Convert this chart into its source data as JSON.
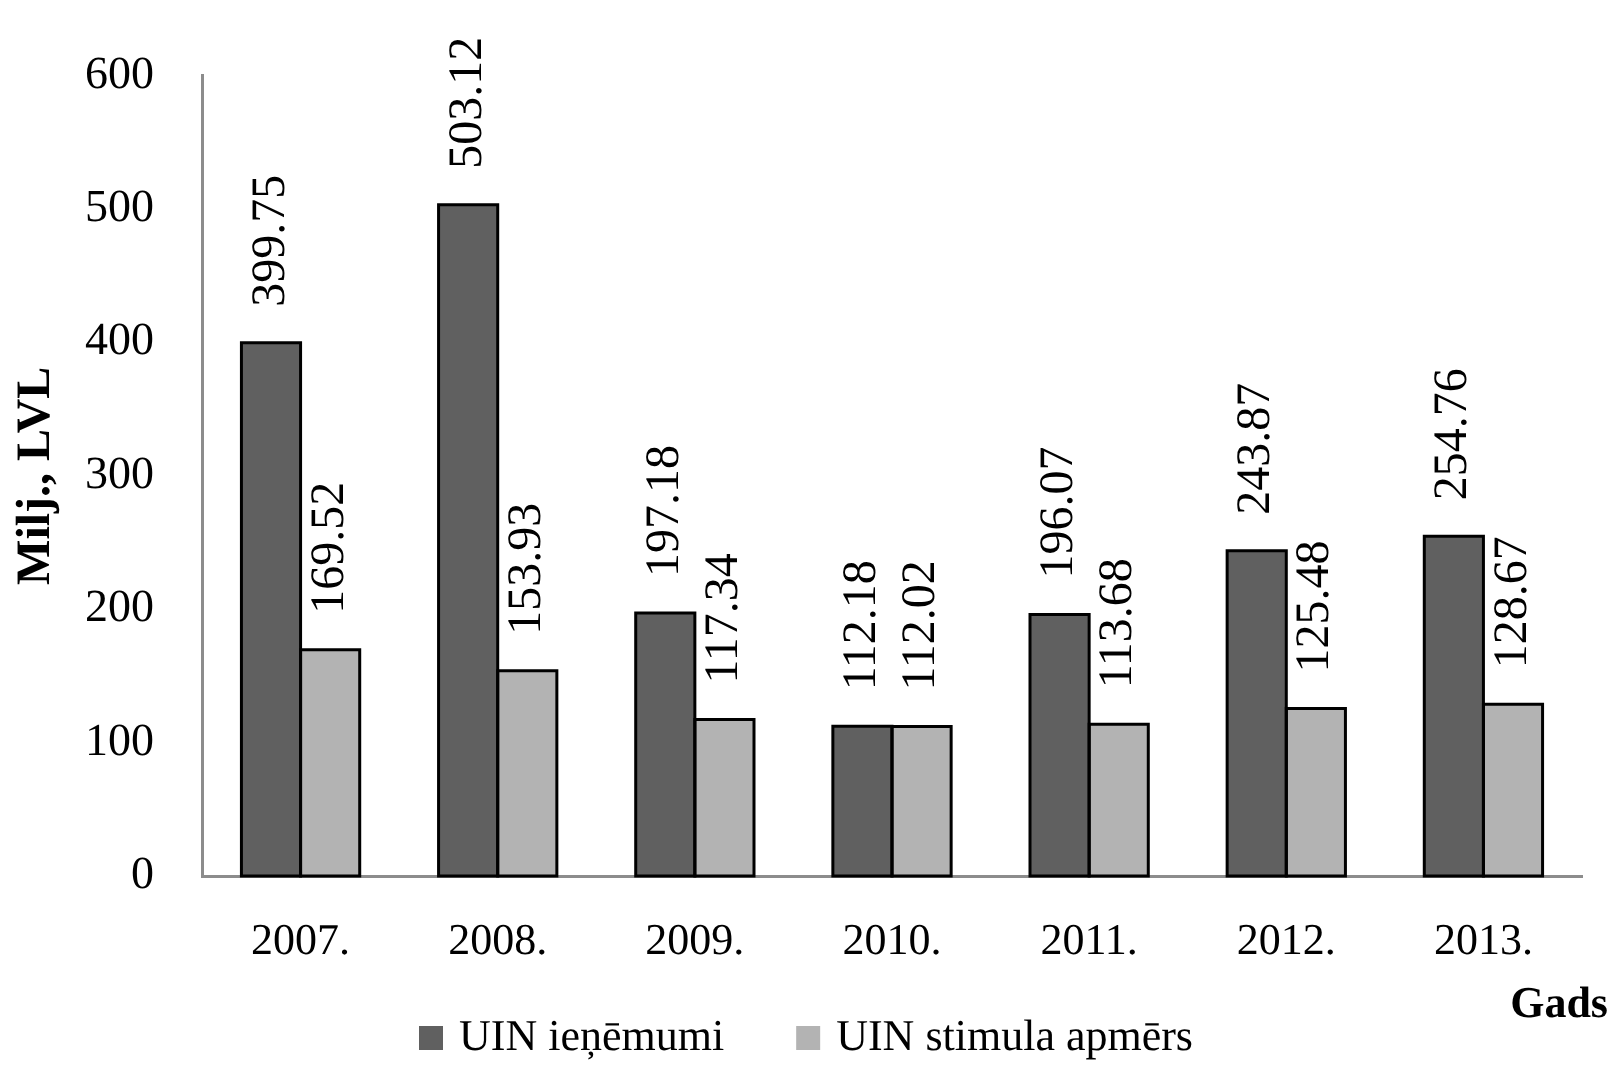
{
  "chart_data": {
    "type": "bar",
    "xlabel": "Gads",
    "ylabel": "Milj., LVL",
    "categories": [
      "2007.",
      "2008.",
      "2009.",
      "2010.",
      "2011.",
      "2012.",
      "2013."
    ],
    "series": [
      {
        "name": "UIN ieņēmumi",
        "color": "#606060",
        "values": [
          399.75,
          503.12,
          197.18,
          112.18,
          196.07,
          243.87,
          254.76
        ]
      },
      {
        "name": "UIN stimula apmērs",
        "color": "#b3b3b3",
        "values": [
          169.52,
          153.93,
          117.34,
          112.02,
          113.68,
          125.48,
          128.67
        ]
      }
    ],
    "ylim": [
      0,
      600
    ],
    "yticks": [
      0,
      100,
      200,
      300,
      400,
      500,
      600
    ],
    "grid": false,
    "legend": "bottom",
    "data_labels": true
  }
}
